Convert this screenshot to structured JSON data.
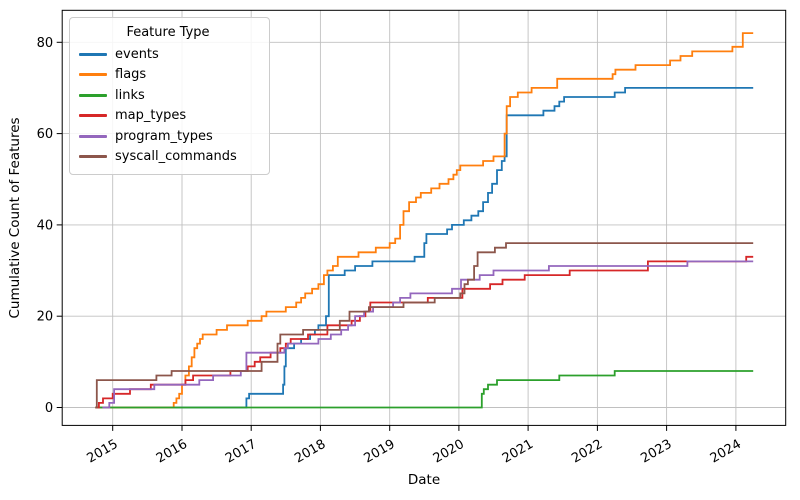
{
  "figure": {
    "background": "#ffffff"
  },
  "legend": {
    "title": "Feature Type",
    "items": [
      {
        "label": "events",
        "color": "#1f77b4"
      },
      {
        "label": "flags",
        "color": "#ff7f0e"
      },
      {
        "label": "links",
        "color": "#2ca02c"
      },
      {
        "label": "map_types",
        "color": "#d62728"
      },
      {
        "label": "program_types",
        "color": "#9467bd"
      },
      {
        "label": "syscall_commands",
        "color": "#8c564b"
      }
    ]
  },
  "chart_data": {
    "type": "line",
    "step_mode": "post",
    "title": "",
    "xlabel": "Date",
    "ylabel": "Cumulative Count of Features",
    "grid": true,
    "legend_position": "upper-left",
    "x_range": [
      2014.27,
      2024.72
    ],
    "y_range": [
      -3.92,
      87.0
    ],
    "x_ticks": [
      2015,
      2016,
      2017,
      2018,
      2019,
      2020,
      2021,
      2022,
      2023,
      2024
    ],
    "x_tick_labels": [
      "2015",
      "2016",
      "2017",
      "2018",
      "2019",
      "2020",
      "2021",
      "2022",
      "2023",
      "2024"
    ],
    "y_ticks": [
      0,
      20,
      40,
      60,
      80
    ],
    "y_tick_labels": [
      "0",
      "20",
      "40",
      "60",
      "80"
    ],
    "x_end": 2024.25,
    "series": [
      {
        "name": "events",
        "color": "#1f77b4",
        "points": [
          [
            2014.75,
            0
          ],
          [
            2016.93,
            2
          ],
          [
            2016.97,
            3
          ],
          [
            2017.46,
            5
          ],
          [
            2017.48,
            9
          ],
          [
            2017.5,
            13
          ],
          [
            2017.62,
            14
          ],
          [
            2017.72,
            15
          ],
          [
            2017.85,
            16
          ],
          [
            2017.92,
            17
          ],
          [
            2017.97,
            18
          ],
          [
            2018.08,
            20
          ],
          [
            2018.12,
            29
          ],
          [
            2018.35,
            30
          ],
          [
            2018.5,
            31
          ],
          [
            2018.75,
            32
          ],
          [
            2019.36,
            33
          ],
          [
            2019.5,
            36
          ],
          [
            2019.53,
            38
          ],
          [
            2019.83,
            39
          ],
          [
            2019.9,
            40
          ],
          [
            2020.07,
            41
          ],
          [
            2020.18,
            42
          ],
          [
            2020.28,
            43
          ],
          [
            2020.35,
            45
          ],
          [
            2020.42,
            47
          ],
          [
            2020.48,
            49
          ],
          [
            2020.55,
            52
          ],
          [
            2020.62,
            54
          ],
          [
            2020.66,
            55
          ],
          [
            2020.69,
            64
          ],
          [
            2021.22,
            65
          ],
          [
            2021.38,
            66
          ],
          [
            2021.45,
            67
          ],
          [
            2021.52,
            68
          ],
          [
            2022.25,
            69
          ],
          [
            2022.4,
            70
          ]
        ]
      },
      {
        "name": "flags",
        "color": "#ff7f0e",
        "points": [
          [
            2014.75,
            0
          ],
          [
            2015.88,
            1
          ],
          [
            2015.92,
            2
          ],
          [
            2015.96,
            3
          ],
          [
            2016.0,
            5
          ],
          [
            2016.05,
            7
          ],
          [
            2016.1,
            9
          ],
          [
            2016.14,
            11
          ],
          [
            2016.18,
            13
          ],
          [
            2016.22,
            14
          ],
          [
            2016.26,
            15
          ],
          [
            2016.3,
            16
          ],
          [
            2016.5,
            17
          ],
          [
            2016.65,
            18
          ],
          [
            2016.95,
            19
          ],
          [
            2017.15,
            20
          ],
          [
            2017.22,
            21
          ],
          [
            2017.5,
            22
          ],
          [
            2017.65,
            23
          ],
          [
            2017.72,
            24
          ],
          [
            2017.78,
            25
          ],
          [
            2017.88,
            26
          ],
          [
            2017.97,
            27
          ],
          [
            2018.05,
            29
          ],
          [
            2018.1,
            30
          ],
          [
            2018.18,
            31
          ],
          [
            2018.25,
            33
          ],
          [
            2018.55,
            34
          ],
          [
            2018.8,
            35
          ],
          [
            2019.0,
            36
          ],
          [
            2019.08,
            37
          ],
          [
            2019.15,
            40
          ],
          [
            2019.2,
            43
          ],
          [
            2019.28,
            45
          ],
          [
            2019.38,
            46
          ],
          [
            2019.45,
            47
          ],
          [
            2019.6,
            48
          ],
          [
            2019.72,
            49
          ],
          [
            2019.85,
            50
          ],
          [
            2019.92,
            51
          ],
          [
            2019.97,
            52
          ],
          [
            2020.02,
            53
          ],
          [
            2020.35,
            54
          ],
          [
            2020.5,
            55
          ],
          [
            2020.66,
            60
          ],
          [
            2020.69,
            66
          ],
          [
            2020.74,
            68
          ],
          [
            2020.85,
            69
          ],
          [
            2021.05,
            70
          ],
          [
            2021.42,
            72
          ],
          [
            2022.22,
            73
          ],
          [
            2022.26,
            74
          ],
          [
            2022.55,
            75
          ],
          [
            2023.05,
            76
          ],
          [
            2023.2,
            77
          ],
          [
            2023.37,
            78
          ],
          [
            2023.95,
            79
          ],
          [
            2024.1,
            82
          ]
        ]
      },
      {
        "name": "links",
        "color": "#2ca02c",
        "points": [
          [
            2014.75,
            0
          ],
          [
            2020.33,
            3
          ],
          [
            2020.36,
            4
          ],
          [
            2020.42,
            5
          ],
          [
            2020.55,
            6
          ],
          [
            2021.45,
            7
          ],
          [
            2022.25,
            8
          ]
        ]
      },
      {
        "name": "map_types",
        "color": "#d62728",
        "points": [
          [
            2014.75,
            0
          ],
          [
            2014.8,
            1
          ],
          [
            2014.86,
            2
          ],
          [
            2015.0,
            3
          ],
          [
            2015.25,
            4
          ],
          [
            2015.55,
            5
          ],
          [
            2016.05,
            6
          ],
          [
            2016.16,
            7
          ],
          [
            2016.7,
            8
          ],
          [
            2016.95,
            9
          ],
          [
            2017.05,
            10
          ],
          [
            2017.13,
            11
          ],
          [
            2017.28,
            12
          ],
          [
            2017.42,
            13
          ],
          [
            2017.5,
            14
          ],
          [
            2017.57,
            15
          ],
          [
            2017.82,
            16
          ],
          [
            2018.1,
            18
          ],
          [
            2018.45,
            19
          ],
          [
            2018.57,
            20
          ],
          [
            2018.65,
            21
          ],
          [
            2018.72,
            23
          ],
          [
            2019.55,
            24
          ],
          [
            2020.05,
            26
          ],
          [
            2020.45,
            27
          ],
          [
            2020.63,
            28
          ],
          [
            2020.95,
            29
          ],
          [
            2021.6,
            30
          ],
          [
            2022.73,
            32
          ],
          [
            2024.15,
            33
          ]
        ]
      },
      {
        "name": "program_types",
        "color": "#9467bd",
        "points": [
          [
            2014.85,
            0
          ],
          [
            2014.95,
            1
          ],
          [
            2015.02,
            4
          ],
          [
            2015.6,
            5
          ],
          [
            2016.25,
            6
          ],
          [
            2016.45,
            7
          ],
          [
            2016.85,
            8
          ],
          [
            2016.93,
            12
          ],
          [
            2017.48,
            13
          ],
          [
            2017.53,
            14
          ],
          [
            2017.97,
            15
          ],
          [
            2018.15,
            16
          ],
          [
            2018.3,
            17
          ],
          [
            2018.4,
            18
          ],
          [
            2018.5,
            20
          ],
          [
            2018.63,
            21
          ],
          [
            2018.76,
            22
          ],
          [
            2019.05,
            23
          ],
          [
            2019.15,
            24
          ],
          [
            2019.3,
            25
          ],
          [
            2019.9,
            26
          ],
          [
            2020.03,
            28
          ],
          [
            2020.3,
            29
          ],
          [
            2020.5,
            30
          ],
          [
            2021.3,
            31
          ],
          [
            2023.3,
            32
          ]
        ]
      },
      {
        "name": "syscall_commands",
        "color": "#8c564b",
        "points": [
          [
            2014.75,
            0
          ],
          [
            2014.77,
            6
          ],
          [
            2015.63,
            7
          ],
          [
            2015.85,
            8
          ],
          [
            2017.15,
            10
          ],
          [
            2017.38,
            14
          ],
          [
            2017.42,
            16
          ],
          [
            2017.75,
            17
          ],
          [
            2018.28,
            19
          ],
          [
            2018.42,
            21
          ],
          [
            2018.7,
            22
          ],
          [
            2019.2,
            23
          ],
          [
            2019.65,
            24
          ],
          [
            2020.02,
            25
          ],
          [
            2020.08,
            27
          ],
          [
            2020.13,
            28
          ],
          [
            2020.22,
            31
          ],
          [
            2020.27,
            34
          ],
          [
            2020.52,
            35
          ],
          [
            2020.68,
            36
          ]
        ]
      }
    ]
  }
}
